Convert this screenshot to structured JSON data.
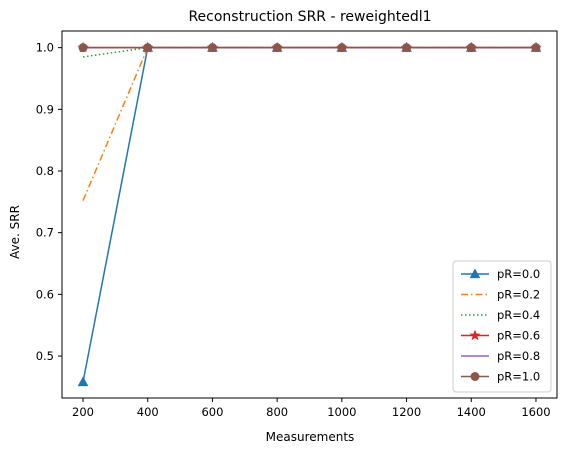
{
  "chart_data": {
    "type": "line",
    "title": "Reconstruction SRR - reweightedl1",
    "xlabel": "Measurements",
    "ylabel": "Ave. SRR",
    "x": [
      200,
      400,
      600,
      800,
      1000,
      1200,
      1400,
      1600
    ],
    "xlim": [
      135,
      1665
    ],
    "ylim": [
      0.432,
      1.027
    ],
    "xticks": [
      200,
      400,
      600,
      800,
      1000,
      1200,
      1400,
      1600
    ],
    "yticks": [
      0.5,
      0.6,
      0.7,
      0.8,
      0.9,
      1.0
    ],
    "ytick_labels": [
      "0.5",
      "0.6",
      "0.7",
      "0.8",
      "0.9",
      "1.0"
    ],
    "grid": false,
    "legend_position": "lower-right",
    "series": [
      {
        "name": "pR=0.0",
        "values": [
          0.458,
          1.0,
          1.0,
          1.0,
          1.0,
          1.0,
          1.0,
          1.0
        ],
        "color": "#1f77b4",
        "linestyle": "solid",
        "marker": "triangle"
      },
      {
        "name": "pR=0.2",
        "values": [
          0.752,
          1.0,
          1.0,
          1.0,
          1.0,
          1.0,
          1.0,
          1.0
        ],
        "color": "#ff7f0e",
        "linestyle": "dashdot",
        "marker": "none"
      },
      {
        "name": "pR=0.4",
        "values": [
          0.985,
          1.0,
          1.0,
          1.0,
          1.0,
          1.0,
          1.0,
          1.0
        ],
        "color": "#2ca02c",
        "linestyle": "dotted",
        "marker": "none"
      },
      {
        "name": "pR=0.6",
        "values": [
          1.0,
          1.0,
          1.0,
          1.0,
          1.0,
          1.0,
          1.0,
          1.0
        ],
        "color": "#d62728",
        "linestyle": "solid",
        "marker": "star"
      },
      {
        "name": "pR=0.8",
        "values": [
          1.0,
          1.0,
          1.0,
          1.0,
          1.0,
          1.0,
          1.0,
          1.0
        ],
        "color": "#9467bd",
        "linestyle": "solid",
        "marker": "none"
      },
      {
        "name": "pR=1.0",
        "values": [
          1.0,
          1.0,
          1.0,
          1.0,
          1.0,
          1.0,
          1.0,
          1.0
        ],
        "color": "#8c564b",
        "linestyle": "solid",
        "marker": "circle"
      }
    ]
  }
}
